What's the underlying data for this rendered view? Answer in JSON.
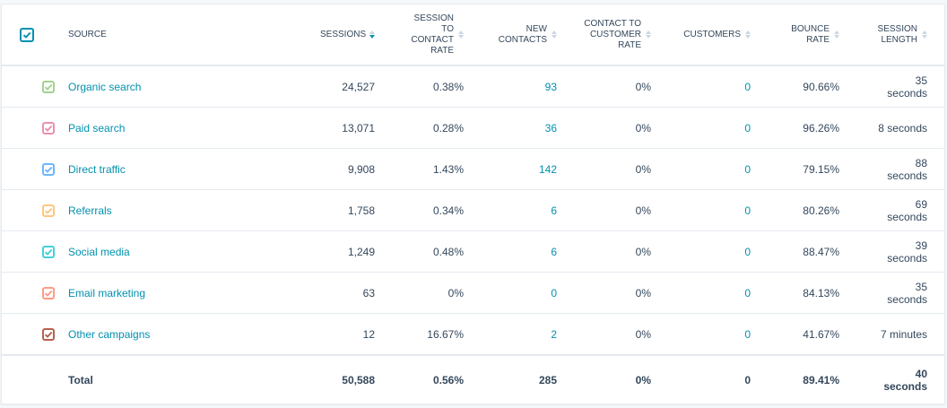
{
  "header": {
    "columns": [
      {
        "label": "Source",
        "sortable": false
      },
      {
        "label": "Sessions",
        "sort": "descending"
      },
      {
        "label": "Session to contact rate"
      },
      {
        "label": "New contacts"
      },
      {
        "label": "Contact to customer rate"
      },
      {
        "label": "Customers"
      },
      {
        "label": "Bounce rate"
      },
      {
        "label": "Session length"
      }
    ],
    "select_all_color": "#0091ae"
  },
  "rows": [
    {
      "source": "Organic search",
      "color": "#a2d28f",
      "sessions": "24,527",
      "s2c": "0.38%",
      "new_contacts": "93",
      "c2c": "0%",
      "customers": "0",
      "bounce": "90.66%",
      "length": "35 seconds"
    },
    {
      "source": "Paid search",
      "color": "#ea90b1",
      "sessions": "13,071",
      "s2c": "0.28%",
      "new_contacts": "36",
      "c2c": "0%",
      "customers": "0",
      "bounce": "96.26%",
      "length": "8 seconds"
    },
    {
      "source": "Direct traffic",
      "color": "#6cb6ff",
      "sessions": "9,908",
      "s2c": "1.43%",
      "new_contacts": "142",
      "c2c": "0%",
      "customers": "0",
      "bounce": "79.15%",
      "length": "88 seconds"
    },
    {
      "source": "Referrals",
      "color": "#ffc77d",
      "sessions": "1,758",
      "s2c": "0.34%",
      "new_contacts": "6",
      "c2c": "0%",
      "customers": "0",
      "bounce": "80.26%",
      "length": "69 seconds"
    },
    {
      "source": "Social media",
      "color": "#45d0d8",
      "sessions": "1,249",
      "s2c": "0.48%",
      "new_contacts": "6",
      "c2c": "0%",
      "customers": "0",
      "bounce": "88.47%",
      "length": "39 seconds"
    },
    {
      "source": "Email marketing",
      "color": "#ff9b85",
      "sessions": "63",
      "s2c": "0%",
      "new_contacts": "0",
      "c2c": "0%",
      "customers": "0",
      "bounce": "84.13%",
      "length": "35 seconds"
    },
    {
      "source": "Other campaigns",
      "color": "#b8614f",
      "sessions": "12",
      "s2c": "16.67%",
      "new_contacts": "2",
      "c2c": "0%",
      "customers": "0",
      "bounce": "41.67%",
      "length": "7 minutes"
    }
  ],
  "total": {
    "label": "Total",
    "sessions": "50,588",
    "s2c": "0.56%",
    "new_contacts": "285",
    "c2c": "0%",
    "customers": "0",
    "bounce": "89.41%",
    "length": "40 seconds"
  }
}
